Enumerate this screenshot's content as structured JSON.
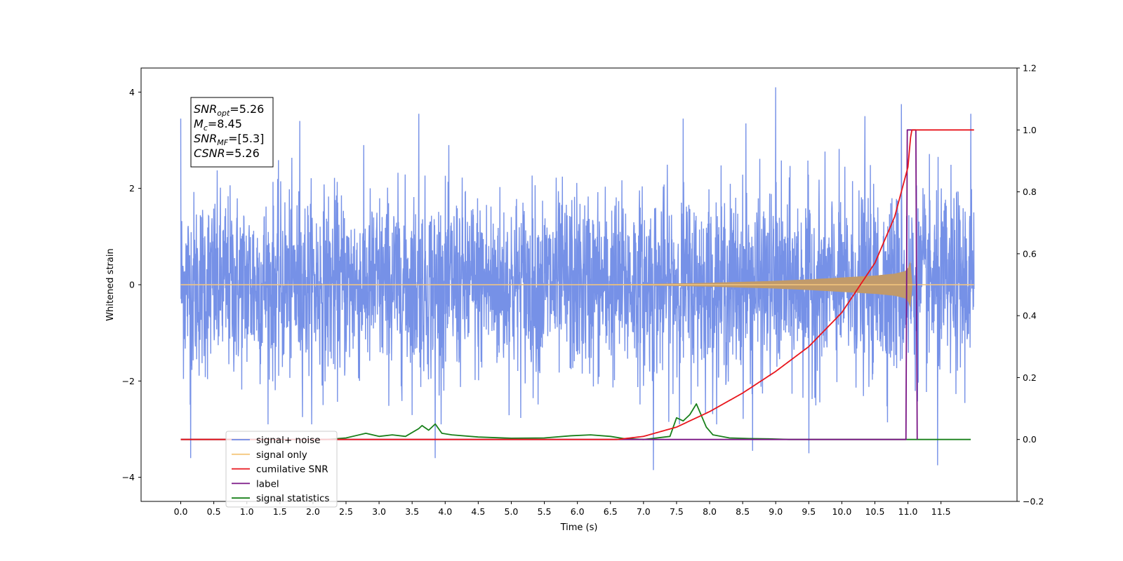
{
  "chart_data": {
    "type": "line",
    "xlabel": "Time (s)",
    "ylabel": "Whitened strain",
    "xlim": [
      -0.6,
      12.65
    ],
    "ylim": [
      -4.5,
      4.5
    ],
    "y2lim": [
      -0.2,
      1.2
    ],
    "x_ticks": [
      "0.0",
      "0.5",
      "1.0",
      "1.5",
      "2.0",
      "2.5",
      "3.0",
      "3.5",
      "4.0",
      "4.5",
      "5.0",
      "5.5",
      "6.0",
      "6.5",
      "7.0",
      "7.5",
      "8.0",
      "8.5",
      "9.0",
      "9.5",
      "10.0",
      "10.5",
      "11.0",
      "11.5"
    ],
    "y_ticks": [
      "4",
      "2",
      "0",
      "−2",
      "−4"
    ],
    "y2_ticks": [
      "1.2",
      "1.0",
      "0.8",
      "0.6",
      "0.4",
      "0.2",
      "0.0",
      "−0.2"
    ],
    "grid": false,
    "legend_position": "lower-left",
    "annotation": {
      "lines": [
        {
          "name": "SNR",
          "sub": "opt",
          "value": "=5.26"
        },
        {
          "name": "M",
          "sub": "c",
          "value": "=8.45"
        },
        {
          "name": "SNR",
          "sub": "MF",
          "value": "=[5.3]"
        },
        {
          "name": "CSNR",
          "sub": "",
          "value": "=5.26"
        }
      ]
    },
    "series": [
      {
        "name": "signal+ noise",
        "color": "#6f8be6",
        "axis": "left",
        "x_range": [
          0.0,
          12.0
        ],
        "typical_range": [
          -1.6,
          1.6
        ],
        "max": 4.1,
        "min": -3.85,
        "spikes": [
          {
            "x": 0.0,
            "y": 3.45
          },
          {
            "x": 0.15,
            "y": -3.6
          },
          {
            "x": 1.8,
            "y": 3.4
          },
          {
            "x": 3.6,
            "y": 3.55
          },
          {
            "x": 3.85,
            "y": -3.6
          },
          {
            "x": 7.15,
            "y": -3.85
          },
          {
            "x": 7.6,
            "y": 3.45
          },
          {
            "x": 8.55,
            "y": 3.35
          },
          {
            "x": 8.65,
            "y": -3.45
          },
          {
            "x": 9.0,
            "y": 4.1
          },
          {
            "x": 9.5,
            "y": -3.5
          },
          {
            "x": 10.35,
            "y": 3.5
          },
          {
            "x": 10.9,
            "y": 3.75
          },
          {
            "x": 11.45,
            "y": -3.75
          },
          {
            "x": 11.95,
            "y": 3.55
          }
        ]
      },
      {
        "name": "signal only",
        "color": "#f5c77e",
        "axis": "left",
        "x": [
          0,
          6,
          7,
          8,
          9,
          9.5,
          10,
          10.5,
          10.8,
          10.95,
          11.0,
          11.05,
          11.06,
          12.0
        ],
        "envelope": [
          0.0,
          0.005,
          0.015,
          0.04,
          0.08,
          0.11,
          0.15,
          0.19,
          0.23,
          0.28,
          0.33,
          0.55,
          0.0,
          0.0
        ]
      },
      {
        "name": "cumilative SNR",
        "color": "#e8161d",
        "axis": "right",
        "x": [
          0,
          6.6,
          7.0,
          7.5,
          8.0,
          8.5,
          9.0,
          9.5,
          10.0,
          10.5,
          10.8,
          11.0,
          11.05,
          12.0
        ],
        "values": [
          0.0,
          0.0,
          0.01,
          0.04,
          0.09,
          0.15,
          0.22,
          0.3,
          0.41,
          0.57,
          0.72,
          0.88,
          1.0,
          1.0
        ]
      },
      {
        "name": "label",
        "color": "#7a1585",
        "axis": "right",
        "x": [
          0,
          10.97,
          10.99,
          11.12,
          11.14
        ],
        "values": [
          0,
          0,
          1,
          1,
          0
        ]
      },
      {
        "name": "signal statistics",
        "color": "#18801a",
        "axis": "right",
        "x": [
          0,
          2.2,
          2.5,
          2.8,
          3.0,
          3.2,
          3.4,
          3.6,
          3.65,
          3.75,
          3.85,
          3.95,
          4.1,
          4.5,
          5.0,
          5.5,
          5.9,
          6.2,
          6.5,
          6.7,
          7.0,
          7.4,
          7.5,
          7.6,
          7.7,
          7.8,
          7.95,
          8.05,
          8.3,
          8.6,
          8.9,
          9.2,
          11.95
        ],
        "values": [
          0,
          0,
          0.005,
          0.02,
          0.01,
          0.015,
          0.01,
          0.035,
          0.045,
          0.03,
          0.05,
          0.02,
          0.015,
          0.008,
          0.004,
          0.005,
          0.012,
          0.015,
          0.01,
          0.003,
          0.0,
          0.01,
          0.07,
          0.06,
          0.08,
          0.115,
          0.04,
          0.015,
          0.005,
          0.003,
          0.002,
          0.0,
          0.0
        ]
      }
    ],
    "legend": [
      {
        "label": "signal+ noise",
        "color": "#6f8be6"
      },
      {
        "label": "signal only",
        "color": "#f5c77e"
      },
      {
        "label": "cumilative SNR",
        "color": "#e8161d"
      },
      {
        "label": "label",
        "color": "#7a1585"
      },
      {
        "label": "signal statistics",
        "color": "#18801a"
      }
    ]
  }
}
